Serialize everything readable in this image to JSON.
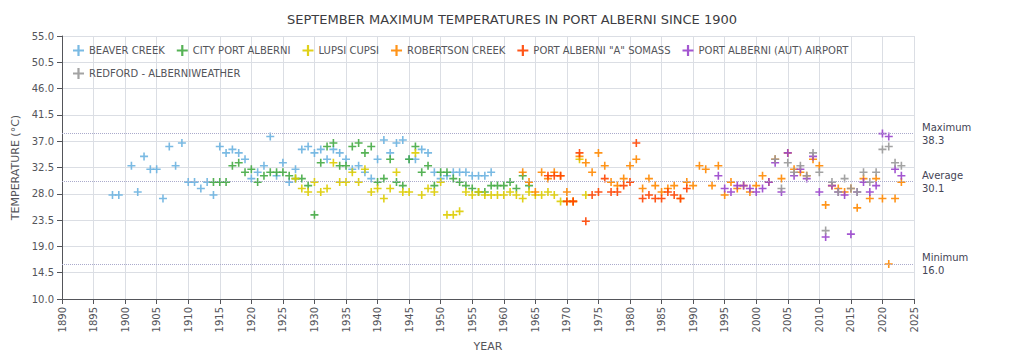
{
  "chart_data": {
    "type": "scatter",
    "title": "SEPTEMBER MAXIMUM TEMPERATURES IN PORT ALBERNI SINCE 1900",
    "xlabel": "YEAR",
    "ylabel": "TEMPERATURE (°C)",
    "xlim": [
      1890,
      2025
    ],
    "ylim": [
      10.0,
      55.0
    ],
    "xticks": [
      1890,
      1895,
      1900,
      1905,
      1910,
      1915,
      1920,
      1925,
      1930,
      1935,
      1940,
      1945,
      1950,
      1955,
      1960,
      1965,
      1970,
      1975,
      1980,
      1985,
      1990,
      1995,
      2000,
      2005,
      2010,
      2015,
      2020,
      2025
    ],
    "yticks": [
      {
        "value": 10.0,
        "label": "10.0"
      },
      14.5,
      {
        "value": 19.0,
        "label": "19.0"
      },
      23.5,
      {
        "value": 28.0,
        "label": "28.0"
      },
      32.5,
      {
        "value": 37.0,
        "label": "37.0"
      },
      41.5,
      {
        "value": 46.0,
        "label": "46.0"
      },
      50.5,
      {
        "value": 55.0,
        "label": "55.0"
      }
    ],
    "grid": true,
    "legend": "upper left",
    "annotations": [
      {
        "y": 38.3,
        "text": "Maximum\n38.3",
        "color": "#aaaacc",
        "line_style": "dotted"
      },
      {
        "y": 30.1,
        "text": "Average\n30.1",
        "color": "#aaaacc",
        "line_style": "dotted"
      },
      {
        "y": 16.0,
        "text": "Minimum\n16.0",
        "color": "#aaaacc",
        "line_style": "dotted"
      }
    ],
    "series": [
      {
        "name": "BEAVER CREEK",
        "color": "#6bb3e0",
        "marker": "plus",
        "x": [
          1898,
          1899,
          1901,
          1902,
          1903,
          1904,
          1905,
          1906,
          1907,
          1908,
          1909,
          1910,
          1911,
          1912,
          1913,
          1914,
          1915,
          1916,
          1917,
          1918,
          1919,
          1920,
          1921,
          1922,
          1923,
          1924,
          1925,
          1926,
          1927,
          1928,
          1929,
          1930,
          1931,
          1932,
          1933,
          1934,
          1935,
          1936,
          1937,
          1938,
          1939,
          1940,
          1941,
          1942,
          1943,
          1944,
          1945,
          1946,
          1947,
          1948,
          1949,
          1950,
          1951,
          1952,
          1953,
          1954,
          1955,
          1956,
          1957,
          1958
        ],
        "values": [
          27.8,
          27.8,
          32.8,
          28.3,
          34.4,
          32.2,
          32.2,
          27.2,
          36.1,
          32.8,
          36.7,
          30.0,
          30.0,
          28.9,
          30.0,
          27.8,
          36.1,
          35.0,
          35.6,
          35.0,
          33.9,
          30.6,
          31.7,
          32.8,
          37.8,
          31.1,
          33.3,
          30.0,
          32.2,
          35.6,
          36.1,
          35.0,
          35.6,
          33.9,
          35.6,
          35.0,
          33.9,
          32.2,
          32.8,
          31.7,
          30.6,
          33.9,
          37.2,
          35.0,
          36.7,
          37.2,
          33.9,
          33.9,
          35.6,
          35.0,
          31.7,
          30.6,
          31.1,
          31.7,
          31.7,
          31.7,
          31.1,
          31.1,
          31.1,
          31.7
        ]
      },
      {
        "name": "CITY PORT ALBERNI",
        "color": "#44aa44",
        "marker": "plus",
        "x": [
          1914,
          1915,
          1916,
          1917,
          1918,
          1919,
          1920,
          1921,
          1922,
          1923,
          1924,
          1925,
          1926,
          1927,
          1928,
          1929,
          1930,
          1931,
          1932,
          1933,
          1934,
          1935,
          1936,
          1937,
          1938,
          1939,
          1940,
          1941,
          1942,
          1943,
          1944,
          1945,
          1946,
          1947,
          1948,
          1949,
          1950,
          1951,
          1952,
          1953,
          1954,
          1955,
          1956,
          1957,
          1958,
          1959,
          1960,
          1961,
          1962,
          1963,
          1964
        ],
        "values": [
          30.0,
          30.0,
          30.0,
          32.8,
          33.3,
          31.7,
          32.2,
          30.0,
          31.1,
          31.7,
          31.7,
          31.7,
          31.1,
          30.6,
          30.6,
          29.4,
          24.4,
          33.3,
          36.1,
          36.7,
          32.8,
          32.8,
          36.1,
          36.7,
          35.0,
          36.1,
          30.0,
          30.6,
          33.9,
          30.0,
          29.4,
          33.9,
          36.1,
          31.7,
          32.8,
          29.4,
          31.7,
          31.7,
          30.6,
          30.0,
          29.4,
          28.9,
          28.3,
          28.3,
          29.4,
          29.4,
          29.4,
          30.0,
          28.9,
          31.1,
          29.4
        ]
      },
      {
        "name": "LUPSI CUPSI",
        "color": "#ddcc00",
        "marker": "plus",
        "x": [
          1927,
          1928,
          1929,
          1930,
          1931,
          1932,
          1933,
          1934,
          1935,
          1936,
          1937,
          1938,
          1939,
          1940,
          1941,
          1942,
          1943,
          1944,
          1945,
          1946,
          1947,
          1948,
          1949,
          1950,
          1951,
          1952,
          1953,
          1954,
          1955,
          1956,
          1957,
          1958,
          1959,
          1960,
          1961,
          1962,
          1963,
          1964,
          1965,
          1966,
          1967,
          1968,
          1969,
          1970,
          1971,
          1972,
          1973
        ],
        "values": [
          30.6,
          28.9,
          28.3,
          30.0,
          28.3,
          28.9,
          33.3,
          30.0,
          30.0,
          31.7,
          30.0,
          32.2,
          28.3,
          28.9,
          27.2,
          28.9,
          31.7,
          28.3,
          28.3,
          35.0,
          27.8,
          28.9,
          28.3,
          30.0,
          24.4,
          24.4,
          25.0,
          28.3,
          27.8,
          28.3,
          27.8,
          27.8,
          27.8,
          27.8,
          28.3,
          27.8,
          27.2,
          28.3,
          27.8,
          27.8,
          28.3,
          27.8,
          26.7,
          26.7,
          26.7,
          33.9,
          27.8
        ]
      },
      {
        "name": "ROBERTSON CREEK",
        "color": "#ff8800",
        "marker": "plus",
        "x": [
          1963,
          1964,
          1965,
          1966,
          1967,
          1968,
          1969,
          1970,
          1971,
          1972,
          1973,
          1974,
          1975,
          1976,
          1977,
          1978,
          1979,
          1980,
          1981,
          1982,
          1983,
          1984,
          1985,
          1986,
          1987,
          1988,
          1989,
          1990,
          1991,
          1992,
          1993,
          1994,
          1995,
          1996,
          1997,
          1998,
          1999,
          2000,
          2001,
          2002,
          2003,
          2004,
          2005,
          2006,
          2007,
          2008,
          2009,
          2010,
          2011,
          2012,
          2013,
          2014,
          2015,
          2016,
          2017,
          2018,
          2019,
          2020,
          2021,
          2022,
          2023
        ],
        "values": [
          31.7,
          30.0,
          28.3,
          31.7,
          30.6,
          31.7,
          31.1,
          28.3,
          26.7,
          34.4,
          33.3,
          31.7,
          35.0,
          32.8,
          30.0,
          29.4,
          30.6,
          32.8,
          33.9,
          28.9,
          30.6,
          29.4,
          28.3,
          28.9,
          29.4,
          27.2,
          30.0,
          29.4,
          32.8,
          32.2,
          29.4,
          32.8,
          27.8,
          30.0,
          28.9,
          29.4,
          28.3,
          29.4,
          31.1,
          30.0,
          33.9,
          30.6,
          35.0,
          32.2,
          31.7,
          31.1,
          33.9,
          32.8,
          26.1,
          29.4,
          28.9,
          28.3,
          28.9,
          25.6,
          30.6,
          27.2,
          30.6,
          27.2,
          16.0,
          27.2,
          30.0
        ]
      },
      {
        "name": "PORT ALBERNI \"A\" SOMASS",
        "color": "#ff4400",
        "marker": "plus",
        "x": [
          1967,
          1968,
          1969,
          1970,
          1971,
          1972,
          1973,
          1974,
          1975,
          1976,
          1977,
          1978,
          1979,
          1980,
          1981,
          1982,
          1983,
          1984,
          1985,
          1986,
          1987,
          1988,
          1989
        ],
        "values": [
          31.1,
          31.1,
          31.1,
          26.7,
          26.7,
          35.0,
          23.3,
          27.8,
          28.3,
          30.6,
          28.3,
          28.3,
          29.4,
          30.0,
          36.7,
          27.2,
          27.8,
          27.2,
          27.2,
          28.3,
          27.8,
          27.2,
          28.9
        ]
      },
      {
        "name": "PORT ALBERNI (AUT) AIRPORT",
        "color": "#9944cc",
        "marker": "plus",
        "x": [
          1994,
          1995,
          1996,
          1997,
          1998,
          1999,
          2000,
          2001,
          2002,
          2003,
          2004,
          2005,
          2006,
          2007,
          2008,
          2009,
          2010,
          2011,
          2012,
          2013,
          2014,
          2015,
          2016,
          2017,
          2018,
          2019,
          2020,
          2021,
          2022,
          2023
        ],
        "values": [
          31.1,
          28.9,
          28.3,
          29.4,
          29.4,
          28.9,
          28.3,
          28.9,
          30.0,
          33.3,
          28.3,
          35.0,
          31.1,
          32.2,
          30.6,
          34.4,
          28.3,
          20.6,
          29.4,
          28.3,
          27.8,
          21.1,
          28.3,
          30.0,
          28.3,
          29.4,
          38.3,
          37.8,
          32.2,
          31.1
        ]
      },
      {
        "name": "REDFORD - ALBERNIWEATHER",
        "color": "#999999",
        "marker": "plus",
        "x": [
          2003,
          2004,
          2005,
          2006,
          2007,
          2008,
          2009,
          2010,
          2011,
          2012,
          2013,
          2014,
          2015,
          2016,
          2017,
          2018,
          2019,
          2020,
          2021,
          2022,
          2023
        ],
        "values": [
          33.9,
          28.9,
          33.3,
          31.7,
          32.8,
          31.1,
          35.0,
          31.7,
          21.7,
          30.0,
          28.3,
          30.6,
          28.9,
          28.3,
          31.7,
          30.0,
          31.7,
          35.6,
          36.1,
          33.3,
          32.8
        ]
      }
    ]
  }
}
